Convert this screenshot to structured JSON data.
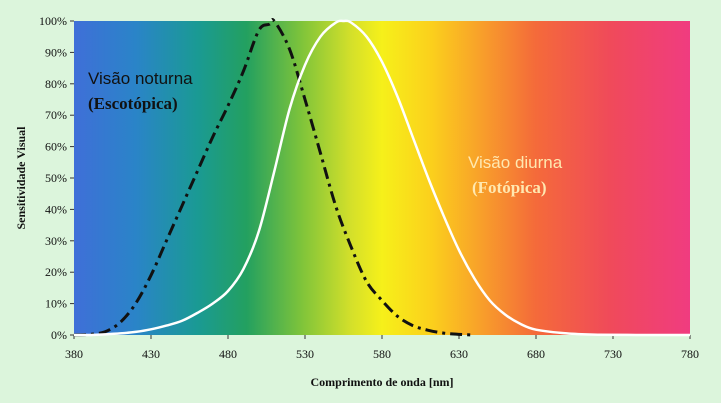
{
  "chart_data": {
    "type": "line",
    "title": "",
    "xlabel": "Comprimento de onda [nm]",
    "ylabel": "Sensitividade Visual",
    "xlim": [
      380,
      780
    ],
    "ylim": [
      0,
      100
    ],
    "x_ticks": [
      "380",
      "430",
      "480",
      "530",
      "580",
      "630",
      "680",
      "730",
      "780"
    ],
    "y_ticks": [
      "0%",
      "10%",
      "20%",
      "30%",
      "40%",
      "50%",
      "60%",
      "70%",
      "80%",
      "90%",
      "100%"
    ],
    "grid": false,
    "background": "visible-spectrum-gradient",
    "series": [
      {
        "name": "Visão noturna (Escotópica)",
        "style": "dash-dot",
        "color": "#111111",
        "x": [
          380,
          390,
          400,
          410,
          420,
          430,
          440,
          450,
          460,
          470,
          480,
          490,
          500,
          507,
          510,
          520,
          530,
          540,
          550,
          560,
          570,
          580,
          590,
          600,
          610,
          620,
          630,
          640
        ],
        "y": [
          0,
          0.2,
          1,
          4,
          10,
          19,
          30,
          41,
          52,
          63,
          73,
          84,
          97,
          99,
          100,
          91,
          75,
          58,
          41,
          28,
          17,
          11,
          6,
          3,
          1.5,
          0.6,
          0.2,
          0
        ]
      },
      {
        "name": "Visão diurna (Fotópica)",
        "style": "solid",
        "color": "#ffffff",
        "x": [
          380,
          390,
          400,
          410,
          420,
          430,
          440,
          450,
          460,
          470,
          480,
          490,
          500,
          510,
          520,
          530,
          540,
          550,
          555,
          560,
          570,
          580,
          590,
          600,
          610,
          620,
          630,
          640,
          650,
          660,
          670,
          680,
          700,
          720,
          750,
          780
        ],
        "y": [
          0,
          0,
          0.2,
          0.5,
          1,
          1.8,
          3,
          4.5,
          7,
          10,
          14,
          21,
          33,
          52,
          72,
          86,
          95,
          99.5,
          100,
          99.5,
          95,
          87,
          76,
          63,
          50,
          38,
          27,
          18,
          11,
          6.5,
          3.5,
          1.7,
          0.5,
          0.1,
          0,
          0
        ]
      }
    ],
    "annotations": {
      "night_line1": "Visão noturna",
      "night_line2": "(Escotópica)",
      "night_color": "#111111",
      "day_line1": "Visão diurna",
      "day_line2": "(Fotópica)",
      "day_color": "#ffe8b0"
    }
  }
}
